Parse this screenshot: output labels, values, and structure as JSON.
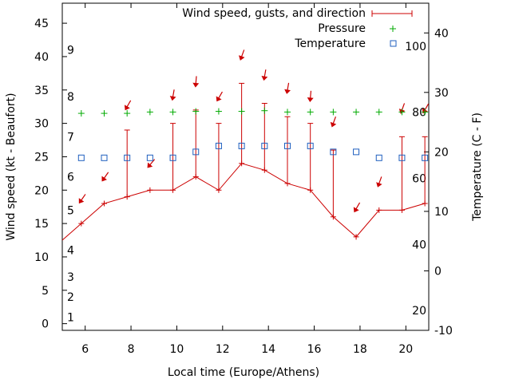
{
  "chart_data": {
    "type": "line",
    "title": "",
    "xlabel": "Local time (Europe/Athens)",
    "ylabel": "Wind speed (kt - Beaufort)",
    "y2label": "Temperature (C - F)",
    "xlim": [
      5,
      21
    ],
    "ylim": [
      -1,
      48
    ],
    "y2lim": [
      -10,
      45
    ],
    "grid": false,
    "legend_position": "top-right",
    "x_ticks": [
      "6",
      "8",
      "10",
      "12",
      "14",
      "16",
      "18",
      "20"
    ],
    "y_ticks": [
      "0",
      "5",
      "10",
      "15",
      "20",
      "25",
      "30",
      "35",
      "40",
      "45"
    ],
    "y2_ticks": [
      "-10",
      "0",
      "10",
      "20",
      "30",
      "40"
    ],
    "beaufort_labels": [
      "1",
      "2",
      "3",
      "4",
      "5",
      "6",
      "7",
      "8",
      "9"
    ],
    "fahrenheit_labels": [
      "20",
      "40",
      "60",
      "80",
      "100"
    ],
    "series": [
      {
        "name": "Wind speed, gusts, and direction",
        "color": "#cc0000",
        "x": [
          5,
          5.83,
          6.83,
          7.83,
          8.83,
          9.83,
          10.83,
          11.83,
          12.83,
          13.83,
          14.83,
          15.83,
          16.83,
          17.83,
          18.83,
          19.83,
          20.83
        ],
        "values": [
          12.5,
          15,
          18,
          19,
          20,
          20,
          22,
          20,
          24,
          23,
          21,
          20,
          16,
          13,
          17,
          17,
          18
        ],
        "gusts": [
          null,
          null,
          null,
          29,
          null,
          30,
          32,
          30,
          36,
          33,
          31,
          30,
          26,
          null,
          null,
          28,
          28
        ],
        "direction_arrows": [
          {
            "x": 5.83,
            "y": 18.5,
            "angle": 35
          },
          {
            "x": 6.83,
            "y": 21.8,
            "angle": 35
          },
          {
            "x": 7.83,
            "y": 32.5,
            "angle": 30
          },
          {
            "x": 8.83,
            "y": 23.8,
            "angle": 40
          },
          {
            "x": 9.83,
            "y": 34,
            "angle": 10
          },
          {
            "x": 10.83,
            "y": 36,
            "angle": 5
          },
          {
            "x": 11.83,
            "y": 33.8,
            "angle": 30
          },
          {
            "x": 12.83,
            "y": 40,
            "angle": 20
          },
          {
            "x": 13.83,
            "y": 37,
            "angle": 10
          },
          {
            "x": 14.83,
            "y": 35,
            "angle": 10
          },
          {
            "x": 15.83,
            "y": 33.8,
            "angle": 5
          },
          {
            "x": 16.83,
            "y": 30,
            "angle": 20
          },
          {
            "x": 17.83,
            "y": 17.2,
            "angle": 30
          },
          {
            "x": 18.83,
            "y": 21,
            "angle": 20
          },
          {
            "x": 19.83,
            "y": 32,
            "angle": 20
          },
          {
            "x": 20.83,
            "y": 32,
            "angle": 30
          }
        ]
      },
      {
        "name": "Pressure",
        "color": "#00aa00",
        "axis": "y",
        "x": [
          5.83,
          6.83,
          7.83,
          8.83,
          9.83,
          10.83,
          11.83,
          12.83,
          13.83,
          14.83,
          15.83,
          16.83,
          17.83,
          18.83,
          19.83,
          20.83
        ],
        "values": [
          31.5,
          31.5,
          31.5,
          31.7,
          31.7,
          31.8,
          31.8,
          31.8,
          31.9,
          31.7,
          31.7,
          31.7,
          31.7,
          31.7,
          31.7,
          31.7
        ]
      },
      {
        "name": "Temperature",
        "color": "#1f5fbf",
        "axis": "y2",
        "x": [
          5.83,
          6.83,
          7.83,
          8.83,
          9.83,
          10.83,
          11.83,
          12.83,
          13.83,
          14.83,
          15.83,
          16.83,
          17.83,
          18.83,
          19.83,
          20.83
        ],
        "values": [
          19,
          19,
          19,
          19,
          19,
          20,
          21,
          21,
          21,
          21,
          21,
          20,
          20,
          19,
          19,
          19
        ]
      }
    ]
  }
}
